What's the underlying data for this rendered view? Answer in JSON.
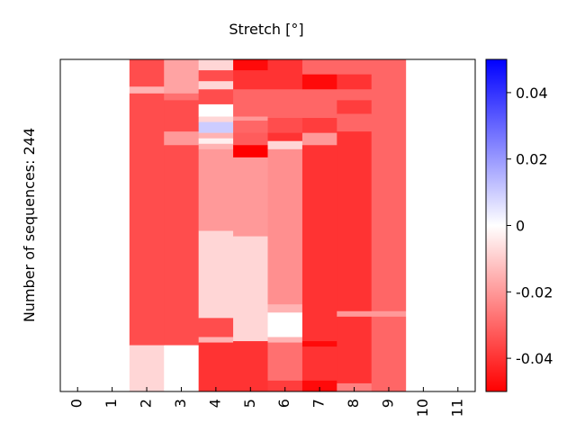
{
  "chart_data": {
    "type": "heatmap",
    "title": "Stretch [°]",
    "ylabel": "Number of sequences: 244",
    "xlabel": "",
    "x_categories": [
      "0",
      "1",
      "2",
      "3",
      "4",
      "5",
      "6",
      "7",
      "8",
      "9",
      "10",
      "11"
    ],
    "n_rows": 244,
    "colorbar": {
      "colormap": "bwr",
      "vmin": -0.05,
      "vmax": 0.05,
      "ticks": [
        0.04,
        0.02,
        0,
        -0.02,
        -0.04
      ],
      "tick_labels": [
        "0.04",
        "0.02",
        "0",
        "-0.02",
        "-0.04"
      ]
    },
    "columns": [
      {
        "x": "0",
        "segments": [
          [
            0,
            244,
            0
          ]
        ]
      },
      {
        "x": "1",
        "segments": [
          [
            0,
            244,
            0
          ]
        ]
      },
      {
        "x": "2",
        "segments": [
          [
            0,
            20,
            -0.035
          ],
          [
            20,
            25,
            -0.015
          ],
          [
            25,
            210,
            -0.035
          ],
          [
            210,
            244,
            -0.008
          ]
        ]
      },
      {
        "x": "3",
        "segments": [
          [
            0,
            25,
            -0.018
          ],
          [
            25,
            30,
            -0.028
          ],
          [
            30,
            53,
            -0.035
          ],
          [
            53,
            63,
            -0.02
          ],
          [
            63,
            210,
            -0.035
          ],
          [
            210,
            244,
            0
          ]
        ]
      },
      {
        "x": "4",
        "segments": [
          [
            0,
            8,
            -0.008
          ],
          [
            8,
            16,
            -0.035
          ],
          [
            16,
            22,
            -0.008
          ],
          [
            22,
            33,
            -0.035
          ],
          [
            33,
            42,
            0
          ],
          [
            42,
            46,
            -0.008
          ],
          [
            46,
            54,
            0.01
          ],
          [
            54,
            58,
            -0.015
          ],
          [
            58,
            62,
            -0.003
          ],
          [
            62,
            66,
            -0.015
          ],
          [
            66,
            126,
            -0.02
          ],
          [
            126,
            190,
            -0.008
          ],
          [
            190,
            204,
            -0.035
          ],
          [
            204,
            208,
            -0.015
          ],
          [
            208,
            244,
            -0.04
          ]
        ]
      },
      {
        "x": "5",
        "segments": [
          [
            0,
            8,
            -0.048
          ],
          [
            8,
            22,
            -0.04
          ],
          [
            22,
            42,
            -0.03
          ],
          [
            42,
            45,
            -0.02
          ],
          [
            45,
            54,
            -0.03
          ],
          [
            54,
            63,
            -0.032
          ],
          [
            63,
            72,
            -0.05
          ],
          [
            72,
            130,
            -0.02
          ],
          [
            130,
            207,
            -0.008
          ],
          [
            207,
            210,
            -0.04
          ],
          [
            210,
            244,
            -0.04
          ]
        ]
      },
      {
        "x": "6",
        "segments": [
          [
            0,
            22,
            -0.04
          ],
          [
            22,
            43,
            -0.03
          ],
          [
            43,
            54,
            -0.035
          ],
          [
            54,
            60,
            -0.04
          ],
          [
            60,
            66,
            -0.008
          ],
          [
            66,
            180,
            -0.022
          ],
          [
            180,
            186,
            -0.015
          ],
          [
            186,
            204,
            0
          ],
          [
            204,
            208,
            -0.015
          ],
          [
            208,
            236,
            -0.028
          ],
          [
            236,
            244,
            -0.038
          ]
        ]
      },
      {
        "x": "7",
        "segments": [
          [
            0,
            11,
            -0.03
          ],
          [
            11,
            22,
            -0.048
          ],
          [
            22,
            43,
            -0.03
          ],
          [
            43,
            54,
            -0.038
          ],
          [
            54,
            63,
            -0.02
          ],
          [
            63,
            207,
            -0.04
          ],
          [
            207,
            211,
            -0.048
          ],
          [
            211,
            236,
            -0.04
          ],
          [
            236,
            244,
            -0.048
          ]
        ]
      },
      {
        "x": "8",
        "segments": [
          [
            0,
            11,
            -0.03
          ],
          [
            11,
            22,
            -0.04
          ],
          [
            22,
            30,
            -0.03
          ],
          [
            30,
            40,
            -0.038
          ],
          [
            40,
            53,
            -0.03
          ],
          [
            53,
            185,
            -0.04
          ],
          [
            185,
            189,
            -0.02
          ],
          [
            189,
            238,
            -0.04
          ],
          [
            238,
            244,
            -0.025
          ]
        ]
      },
      {
        "x": "9",
        "segments": [
          [
            0,
            185,
            -0.03
          ],
          [
            185,
            189,
            -0.02
          ],
          [
            189,
            244,
            -0.03
          ]
        ]
      },
      {
        "x": "10",
        "segments": [
          [
            0,
            244,
            0
          ]
        ]
      },
      {
        "x": "11",
        "segments": [
          [
            0,
            244,
            0
          ]
        ]
      }
    ]
  }
}
